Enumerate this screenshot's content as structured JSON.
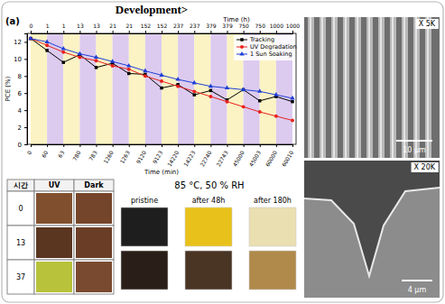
{
  "header": {
    "title": "Development>"
  },
  "chart_data": {
    "type": "line",
    "panel": "(a)",
    "x_label": "Time (min)",
    "x2_label": "Time (h)",
    "y_label": "PCE (%)",
    "categories": [
      "0",
      "60",
      "63",
      "780",
      "783",
      "1260",
      "1263",
      "9120",
      "9123",
      "14220",
      "14223",
      "22740",
      "22743",
      "45000",
      "45003",
      "60000",
      "60010"
    ],
    "categories_top": [
      "0",
      "1",
      "1",
      "13",
      "13",
      "21",
      "21",
      "152",
      "152",
      "237",
      "237",
      "379",
      "379",
      "750",
      "750",
      "1000",
      "1000"
    ],
    "ylim": [
      0,
      13
    ],
    "yticks": [
      0,
      2,
      4,
      6,
      8,
      10,
      12
    ],
    "legend": "upper right",
    "series": [
      {
        "name": "Tracking",
        "color": "#000000",
        "marker": "square",
        "values": [
          12.4,
          11.0,
          9.6,
          10.5,
          9.0,
          9.5,
          8.3,
          8.2,
          6.6,
          7.0,
          5.8,
          6.3,
          5.2,
          6.4,
          5.1,
          5.6,
          5.0
        ]
      },
      {
        "name": "UV Degradation",
        "color": "#e8211d",
        "marker": "circle",
        "values": [
          12.4,
          11.6,
          10.8,
          10.2,
          9.8,
          9.2,
          8.8,
          8.0,
          7.4,
          6.8,
          6.2,
          5.6,
          5.0,
          4.4,
          3.8,
          3.3,
          2.8
        ]
      },
      {
        "name": "1 Sun Soaking",
        "color": "#1f3fd6",
        "marker": "triangle",
        "values": [
          12.4,
          12.0,
          11.2,
          10.6,
          10.2,
          9.7,
          9.2,
          8.6,
          8.1,
          7.6,
          7.2,
          6.8,
          6.6,
          6.4,
          6.2,
          5.8,
          5.4
        ]
      }
    ]
  },
  "uv_table": {
    "header": [
      "시간",
      "UV",
      "Dark"
    ],
    "rows": [
      {
        "time": "0",
        "uv_color": "#80502e",
        "dark_color": "#74452a"
      },
      {
        "time": "13",
        "uv_color": "#5a3520",
        "dark_color": "#6a3e26"
      },
      {
        "time": "37",
        "uv_color": "#b8c23a",
        "dark_color": "#7a4a30"
      }
    ]
  },
  "humidity_test": {
    "condition": "85 °C, 50 % RH",
    "columns": [
      "pristine",
      "after 48h",
      "after 180h"
    ],
    "rows": [
      [
        "#1e1e1e",
        "#e8c21a",
        "#eadfb0"
      ],
      [
        "#2a1e18",
        "#4a3424",
        "#b08a4a"
      ]
    ]
  },
  "sem": [
    {
      "magnification": "X 5K",
      "scale_bar": "10 μm"
    },
    {
      "magnification": "X 20K",
      "scale_bar": "4 μm"
    }
  ]
}
